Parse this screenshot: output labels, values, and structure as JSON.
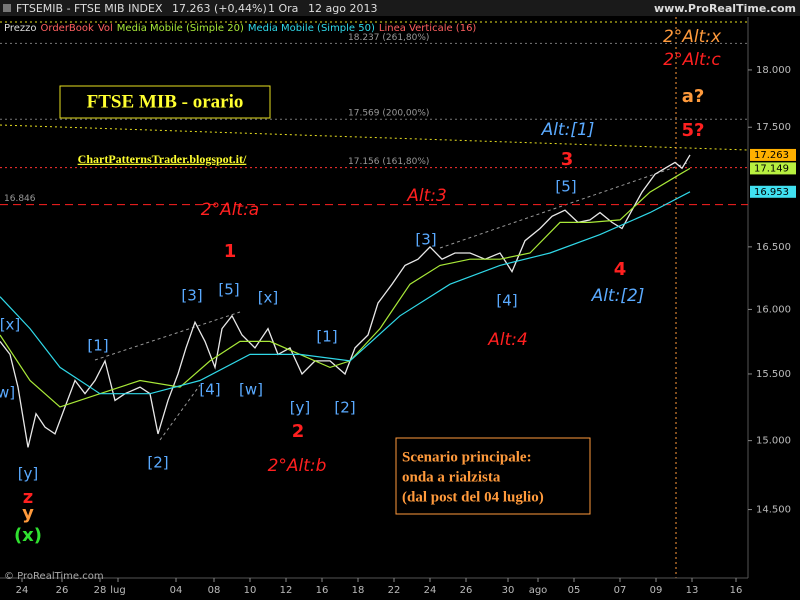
{
  "header": {
    "symbol": "FTSEMIB - FTSE MIB INDEX",
    "quote": "17.263 (+0,44%)",
    "period": "1 Ora",
    "date": "12 ago 2013",
    "site": "www.ProRealTime.com",
    "legend": [
      "Prezzo",
      "OrderBook",
      "Vol",
      "Media Mobile (Simple 20)",
      "Media Mobile (Simple 50)",
      "Linea Verticale (16)"
    ],
    "footer": "© ProRealTime.com"
  },
  "chart_data": {
    "type": "line",
    "title": "FTSE MIB - orario",
    "subtitle": "ChartPatternsTrader.blogspot.it/",
    "log_scale": true,
    "xlim": [
      0,
      748
    ],
    "ylim": [
      14.02,
      18.63
    ],
    "yticks": [
      {
        "value": 14.5,
        "label": "14.500"
      },
      {
        "value": 15,
        "label": "15.000"
      },
      {
        "value": 15.5,
        "label": "15.500"
      },
      {
        "value": 16,
        "label": "16.000"
      },
      {
        "value": 16.5,
        "label": "16.500"
      },
      {
        "value": 17.5,
        "label": "17.500"
      },
      {
        "value": 18,
        "label": "18.000"
      }
    ],
    "xticks": [
      {
        "value": 22,
        "label": "24"
      },
      {
        "value": 62,
        "label": "26"
      },
      {
        "value": 100,
        "label": "28"
      },
      {
        "value": 118,
        "label": "lug"
      },
      {
        "value": 176,
        "label": "04"
      },
      {
        "value": 214,
        "label": "08"
      },
      {
        "value": 250,
        "label": "10"
      },
      {
        "value": 286,
        "label": "12"
      },
      {
        "value": 322,
        "label": "16"
      },
      {
        "value": 358,
        "label": "18"
      },
      {
        "value": 394,
        "label": "22"
      },
      {
        "value": 430,
        "label": "24"
      },
      {
        "value": 466,
        "label": "26"
      },
      {
        "value": 508,
        "label": "30"
      },
      {
        "value": 538,
        "label": "ago"
      },
      {
        "value": 574,
        "label": "05"
      },
      {
        "value": 620,
        "label": "07"
      },
      {
        "value": 656,
        "label": "09"
      },
      {
        "value": 692,
        "label": "13"
      },
      {
        "value": 736,
        "label": "16"
      }
    ],
    "series": [
      {
        "name": "Prezzo",
        "color": "#e8e8e8",
        "x": [
          0,
          10,
          18,
          28,
          36,
          45,
          55,
          65,
          75,
          85,
          95,
          105,
          115,
          125,
          140,
          150,
          158,
          168,
          178,
          186,
          195,
          205,
          215,
          222,
          232,
          242,
          255,
          268,
          278,
          290,
          302,
          315,
          330,
          345,
          355,
          368,
          378,
          392,
          405,
          418,
          430,
          442,
          455,
          470,
          485,
          500,
          512,
          525,
          540,
          552,
          565,
          578,
          590,
          600,
          612,
          622,
          632,
          642,
          655,
          665,
          675,
          682,
          690
        ],
        "values": [
          15.75,
          15.65,
          15.4,
          14.95,
          15.2,
          15.1,
          15.05,
          15.25,
          15.45,
          15.35,
          15.45,
          15.6,
          15.3,
          15.35,
          15.4,
          15.35,
          15.05,
          15.3,
          15.5,
          15.7,
          15.9,
          15.75,
          15.55,
          15.85,
          15.95,
          15.8,
          15.7,
          15.85,
          15.65,
          15.7,
          15.5,
          15.6,
          15.6,
          15.5,
          15.7,
          15.8,
          16.05,
          16.2,
          16.35,
          16.4,
          16.5,
          16.4,
          16.45,
          16.45,
          16.4,
          16.45,
          16.3,
          16.55,
          16.65,
          16.75,
          16.8,
          16.7,
          16.72,
          16.78,
          16.7,
          16.65,
          16.8,
          16.95,
          17.1,
          17.15,
          17.2,
          17.15,
          17.263
        ]
      },
      {
        "name": "Media Mobile (Simple 20)",
        "color": "#a8e838",
        "x": [
          0,
          30,
          60,
          100,
          140,
          180,
          210,
          240,
          270,
          300,
          330,
          350,
          380,
          410,
          440,
          470,
          500,
          530,
          560,
          590,
          620,
          650,
          680,
          690
        ],
        "values": [
          15.8,
          15.45,
          15.25,
          15.35,
          15.45,
          15.4,
          15.6,
          15.75,
          15.75,
          15.65,
          15.55,
          15.6,
          15.85,
          16.2,
          16.35,
          16.4,
          16.4,
          16.45,
          16.7,
          16.7,
          16.72,
          16.95,
          17.1,
          17.149
        ]
      },
      {
        "name": "Media Mobile (Simple 50)",
        "color": "#30d8e8",
        "x": [
          0,
          30,
          60,
          100,
          150,
          200,
          250,
          300,
          350,
          400,
          450,
          500,
          550,
          600,
          650,
          690
        ],
        "values": [
          16.1,
          15.85,
          15.55,
          15.35,
          15.35,
          15.45,
          15.65,
          15.65,
          15.6,
          15.95,
          16.2,
          16.35,
          16.45,
          16.6,
          16.78,
          16.953
        ]
      }
    ],
    "last_values": [
      {
        "value": 17.263,
        "label": "17.263",
        "color": "#ffb000"
      },
      {
        "value": 17.149,
        "label": "17.149",
        "color": "#b8f040"
      },
      {
        "value": 16.953,
        "label": "16.953",
        "color": "#40e0f0"
      }
    ],
    "levels": [
      {
        "value": 16.846,
        "label": "16.846",
        "color": "#ff2020",
        "dash": "8,5"
      },
      {
        "value": 17.156,
        "label": "17.156 (161,80%)",
        "color": "#ff3030",
        "dash": "2,3"
      },
      {
        "value": 17.569,
        "label": "17.569 (200,00%)",
        "color": "#777",
        "dash": "2,3"
      },
      {
        "value": 18.237,
        "label": "18.237 (261,80%)",
        "color": "#777",
        "dash": "2,3"
      }
    ],
    "annotations": [
      {
        "text": "[x]",
        "color": "#5aaaff"
      },
      {
        "text": "w]",
        "color": "#5aaaff"
      },
      {
        "text": "[y]",
        "color": "#5aaaff"
      },
      {
        "text": "z",
        "color": "#ff2020"
      },
      {
        "text": "y",
        "color": "#ff9a3c"
      },
      {
        "text": "(x)",
        "color": "#30e030"
      },
      {
        "text": "[1]",
        "color": "#5aaaff"
      },
      {
        "text": "[2]",
        "color": "#5aaaff"
      },
      {
        "text": "[3]",
        "color": "#5aaaff"
      },
      {
        "text": "[4]",
        "color": "#5aaaff"
      },
      {
        "text": "[5]",
        "color": "#5aaaff"
      },
      {
        "text": "[x]",
        "color": "#5aaaff"
      },
      {
        "text": "[w]",
        "color": "#5aaaff"
      },
      {
        "text": "[1]",
        "color": "#5aaaff"
      },
      {
        "text": "[y]",
        "color": "#5aaaff"
      },
      {
        "text": "[2]",
        "color": "#5aaaff"
      },
      {
        "text": "1",
        "color": "#ff2020"
      },
      {
        "text": "2",
        "color": "#ff2020"
      },
      {
        "text": "2°Alt:a",
        "color": "#ff2020"
      },
      {
        "text": "2°Alt:b",
        "color": "#ff2020"
      },
      {
        "text": "[3]",
        "color": "#5aaaff"
      },
      {
        "text": "[4]",
        "color": "#5aaaff"
      },
      {
        "text": "Alt:4",
        "color": "#ff2020"
      },
      {
        "text": "Alt:3",
        "color": "#ff2020"
      },
      {
        "text": "[5]",
        "color": "#5aaaff"
      },
      {
        "text": "3",
        "color": "#ff2020"
      },
      {
        "text": "4",
        "color": "#ff2020"
      },
      {
        "text": "Alt:[2]",
        "color": "#5aaaff"
      },
      {
        "text": "Alt:[1]",
        "color": "#5aaaff"
      },
      {
        "text": "2°Alt:x",
        "color": "#ff9a3c"
      },
      {
        "text": "2°Alt:c",
        "color": "#ff2020"
      },
      {
        "text": "a?",
        "color": "#ff9a3c"
      },
      {
        "text": "5?",
        "color": "#ff2020"
      }
    ],
    "scenario": [
      "Scenario principale:",
      "onda a rialzista",
      "(dal post del 04 luglio)"
    ]
  }
}
